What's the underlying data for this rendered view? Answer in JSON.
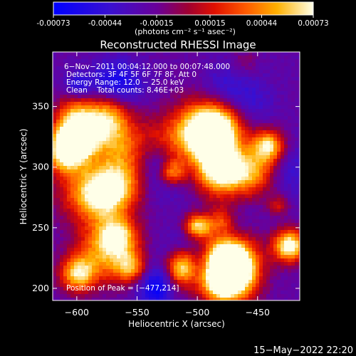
{
  "colorbar": {
    "ticks": [
      "-0.00073",
      "-0.00044",
      "-0.00015",
      "0.00015",
      "0.00044",
      "0.00073"
    ],
    "tick_values": [
      -0.00073,
      -0.00044,
      -0.00015,
      0.00015,
      0.00044,
      0.00073
    ],
    "range": [
      -0.00073,
      0.00073
    ],
    "units": "(photons cm⁻² s⁻¹ asec⁻²)"
  },
  "plot": {
    "title": "Reconstructed RHESSI Image",
    "xlabel": "Heliocentric X (arcsec)",
    "ylabel": "Heliocentric Y (arcsec)",
    "xlim": [
      -620,
      -415
    ],
    "ylim": [
      190,
      395
    ],
    "xticks": [
      -600,
      -550,
      -500,
      -450
    ],
    "xtick_labels": [
      "−600",
      "−550",
      "−500",
      "−450"
    ],
    "yticks": [
      200,
      250,
      300,
      350
    ],
    "ytick_labels": [
      "200",
      "250",
      "300",
      "350"
    ]
  },
  "annotation": {
    "time_range": "6−Nov−2011 00:04:12.000 to 00:07:48.000",
    "detectors": "Detectors: 3F 4F 5F 6F 7F 8F, Att 0",
    "energy": "Energy Range: 12.0 − 25.0 keV",
    "clean": "Clean    Total counts: 8.46E+03",
    "peak": "Position of Peak = [−477,214]"
  },
  "peak_position": [
    -477,
    214
  ],
  "footer": {
    "timestamp": "15−May−2022 22:20"
  },
  "colors": {
    "background": "#000000",
    "colormap": [
      "#0000ff",
      "#4a00c0",
      "#7a00a0",
      "#c01010",
      "#ff4000",
      "#ffb000",
      "#ffffe0"
    ]
  }
}
